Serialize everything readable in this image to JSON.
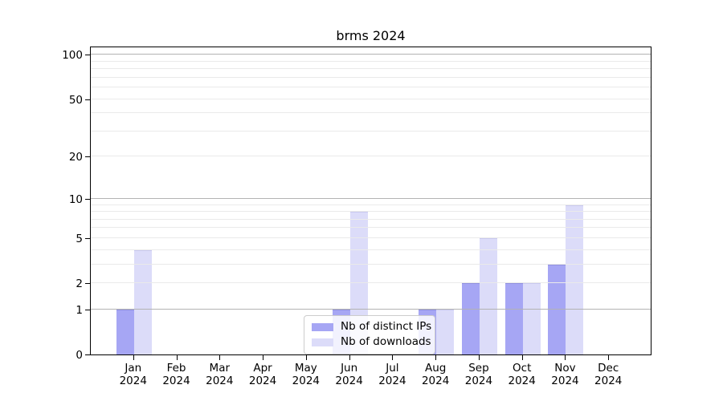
{
  "figure": {
    "title": "brms 2024"
  },
  "chart_data": {
    "type": "bar",
    "title": "brms 2024",
    "categories": [
      "Jan 2024",
      "Feb 2024",
      "Mar 2024",
      "Apr 2024",
      "May 2024",
      "Jun 2024",
      "Jul 2024",
      "Aug 2024",
      "Sep 2024",
      "Oct 2024",
      "Nov 2024",
      "Dec 2024"
    ],
    "series": [
      {
        "name": "Nb of distinct IPs",
        "color": "#a6a6f4",
        "edge_color": "#9191e0",
        "values": [
          1,
          0,
          0,
          0,
          0,
          1,
          0,
          1,
          2,
          2,
          3,
          0
        ]
      },
      {
        "name": "Nb of downloads",
        "color": "#dcdcf9",
        "edge_color": "#c9c9ef",
        "values": [
          4,
          0,
          0,
          0,
          0,
          8,
          0,
          1,
          5,
          2,
          9,
          0
        ]
      }
    ],
    "xlabel": "",
    "ylabel": "",
    "y_axis": {
      "scale": "log1p",
      "tick_values": [
        0,
        1,
        2,
        5,
        10,
        20,
        50,
        100
      ],
      "tick_labels": [
        "0",
        "1",
        "2",
        "5",
        "10",
        "20",
        "50",
        "100"
      ],
      "major_gridlines": [
        1,
        10,
        100
      ],
      "minor_gridlines": [
        2,
        3,
        4,
        5,
        6,
        7,
        8,
        9,
        20,
        30,
        40,
        50,
        60,
        70,
        80,
        90
      ],
      "ylim": [
        0,
        115
      ]
    },
    "legend": {
      "position": "lower center",
      "entries": [
        "Nb of distinct IPs",
        "Nb of downloads"
      ]
    },
    "grid": true,
    "colors": {
      "grid_major": "#b3b3b3",
      "grid_minor": "#eaeaea",
      "axis": "#000000",
      "text": "#000000",
      "background": "#ffffff"
    }
  }
}
